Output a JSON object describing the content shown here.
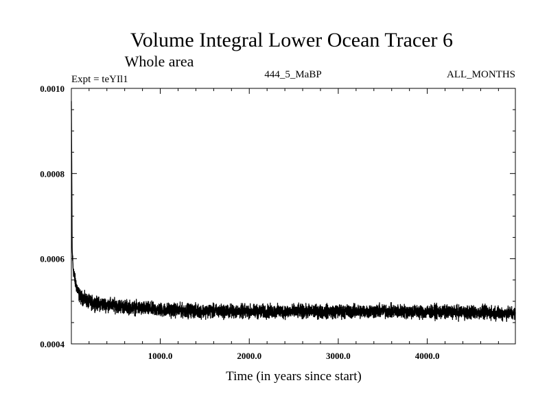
{
  "chart_data": {
    "type": "line",
    "title": "Volume Integral Lower Ocean Tracer 6",
    "subtitle": "Whole area",
    "experiment_label": "Expt = teYIl1",
    "period_label": "444_5_MaBP",
    "months_label": "ALL_MONTHS",
    "xlabel": "Time (in years since start)",
    "ylabel": "",
    "xlim": [
      1,
      4990
    ],
    "ylim": [
      0.0004,
      0.001
    ],
    "x_ticks": [
      1000,
      2000,
      3000,
      4000
    ],
    "x_tick_labels": [
      "1000.0",
      "2000.0",
      "3000.0",
      "4000.0"
    ],
    "y_ticks": [
      0.0004,
      0.0006,
      0.0008,
      0.001
    ],
    "y_tick_labels": [
      "0.0004",
      "0.0006",
      "0.0008",
      "0.0010"
    ],
    "grid": false,
    "series": [
      {
        "name": "Lower Ocean Tracer 6",
        "color": "#000000",
        "x": [
          1,
          10,
          20,
          40,
          60,
          80,
          100,
          150,
          200,
          300,
          400,
          500,
          700,
          1000,
          1500,
          2000,
          2500,
          3000,
          3500,
          4000,
          4500,
          4990
        ],
        "values": [
          0.00097,
          0.00062,
          0.00058,
          0.00055,
          0.000535,
          0.00052,
          0.00051,
          0.000505,
          0.000498,
          0.000494,
          0.000492,
          0.00049,
          0.000485,
          0.00048,
          0.000477,
          0.000476,
          0.000476,
          0.000476,
          0.000477,
          0.000475,
          0.000474,
          0.000472
        ],
        "noise_amplitude": 1.2e-05
      }
    ]
  }
}
